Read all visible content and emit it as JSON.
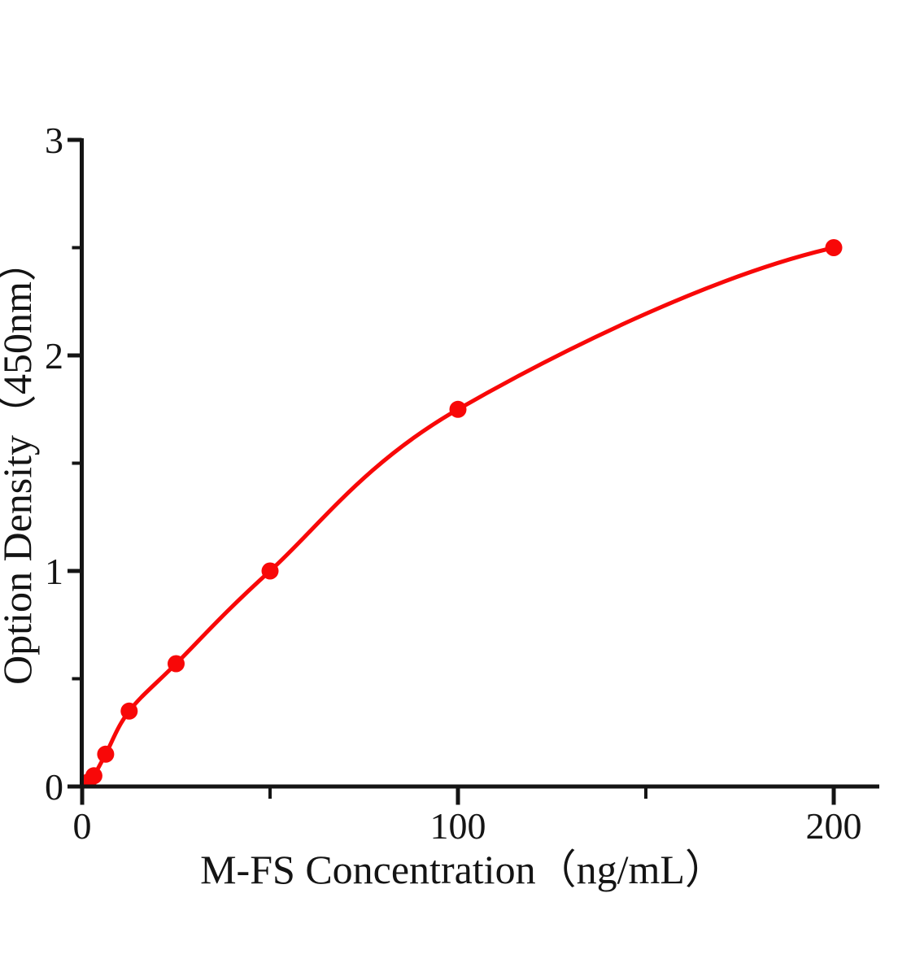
{
  "chart_data": {
    "type": "line",
    "title": "",
    "xlabel": "M-FS Concentration（ng/mL）",
    "ylabel": "Option Density（450nm）",
    "points": [
      {
        "x": 1.56,
        "y": 0.02
      },
      {
        "x": 3.12,
        "y": 0.05
      },
      {
        "x": 6.25,
        "y": 0.15
      },
      {
        "x": 12.5,
        "y": 0.35
      },
      {
        "x": 25,
        "y": 0.57
      },
      {
        "x": 50,
        "y": 1.0
      },
      {
        "x": 100,
        "y": 1.75
      },
      {
        "x": 200,
        "y": 2.5
      }
    ],
    "curve_start": {
      "x": 0,
      "y": 0.005
    },
    "xlim": [
      0,
      212
    ],
    "ylim": [
      0,
      3
    ],
    "x_major_ticks": [
      0,
      100,
      200
    ],
    "x_minor_ticks": [
      50,
      150
    ],
    "y_major_ticks": [
      0,
      1,
      2,
      3
    ],
    "y_minor_ticks": [
      0.5,
      1.5,
      2.5
    ],
    "grid": false,
    "legend": "none",
    "curve_color": "#f80808",
    "point_color": "#f80808",
    "axis_color": "#141414",
    "background": "#ffffff"
  }
}
